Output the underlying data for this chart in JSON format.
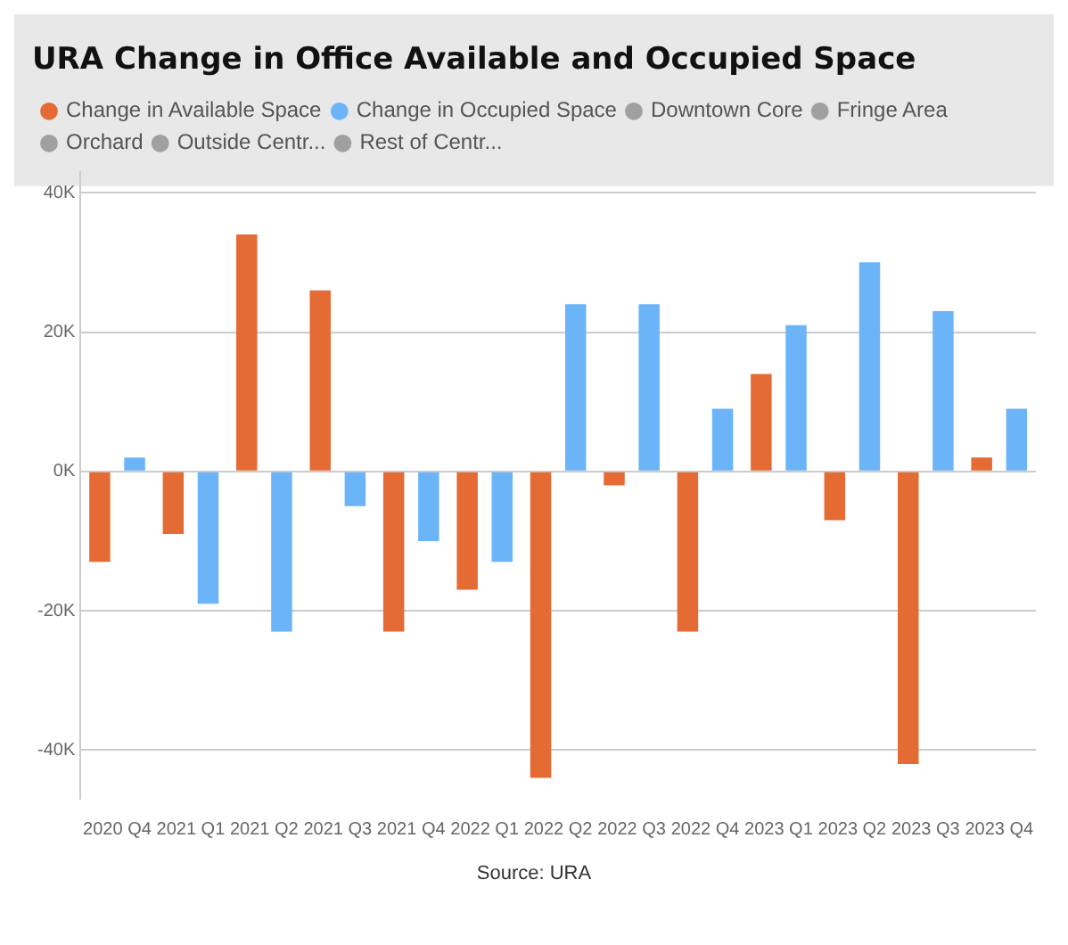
{
  "chart_data": {
    "type": "bar",
    "title": "URA Change in Office Available and Occupied Space",
    "categories": [
      "2020 Q4",
      "2021 Q1",
      "2021 Q2",
      "2021 Q3",
      "2021 Q4",
      "2022 Q1",
      "2022 Q2",
      "2022 Q3",
      "2022 Q4",
      "2023 Q1",
      "2023 Q2",
      "2023 Q3",
      "2023 Q4"
    ],
    "series": [
      {
        "name": "Change in Available Space",
        "color": "#e46c34",
        "values": [
          -13000,
          -9000,
          34000,
          26000,
          -23000,
          -17000,
          -44000,
          -2000,
          -23000,
          14000,
          -7000,
          -42000,
          2000
        ]
      },
      {
        "name": "Change in Occupied Space",
        "color": "#6cb4f8",
        "values": [
          2000,
          -19000,
          -23000,
          -5000,
          -10000,
          -13000,
          24000,
          24000,
          9000,
          21000,
          30000,
          23000,
          9000
        ]
      },
      {
        "name": "Downtown Core",
        "color": "#a0a0a0",
        "values": [
          null,
          null,
          null,
          null,
          null,
          null,
          null,
          null,
          null,
          null,
          null,
          null,
          null
        ]
      },
      {
        "name": "Fringe Area",
        "color": "#a0a0a0",
        "values": [
          null,
          null,
          null,
          null,
          null,
          null,
          null,
          null,
          null,
          null,
          null,
          null,
          null
        ]
      },
      {
        "name": "Orchard",
        "color": "#a0a0a0",
        "values": [
          null,
          null,
          null,
          null,
          null,
          null,
          null,
          null,
          null,
          null,
          null,
          null,
          null
        ]
      },
      {
        "name": "Outside Centr...",
        "color": "#a0a0a0",
        "values": [
          null,
          null,
          null,
          null,
          null,
          null,
          null,
          null,
          null,
          null,
          null,
          null,
          null
        ]
      },
      {
        "name": "Rest of Centr...",
        "color": "#a0a0a0",
        "values": [
          null,
          null,
          null,
          null,
          null,
          null,
          null,
          null,
          null,
          null,
          null,
          null,
          null
        ]
      }
    ],
    "ylim": [
      -47000,
      43000
    ],
    "yticks": [
      {
        "value": -40000,
        "label": "-40K"
      },
      {
        "value": -20000,
        "label": "-20K"
      },
      {
        "value": 0,
        "label": "0K"
      },
      {
        "value": 20000,
        "label": "20K"
      },
      {
        "value": 40000,
        "label": "40K"
      }
    ],
    "grid": "y",
    "legend": "top",
    "annotations": [
      "Source: URA"
    ]
  }
}
